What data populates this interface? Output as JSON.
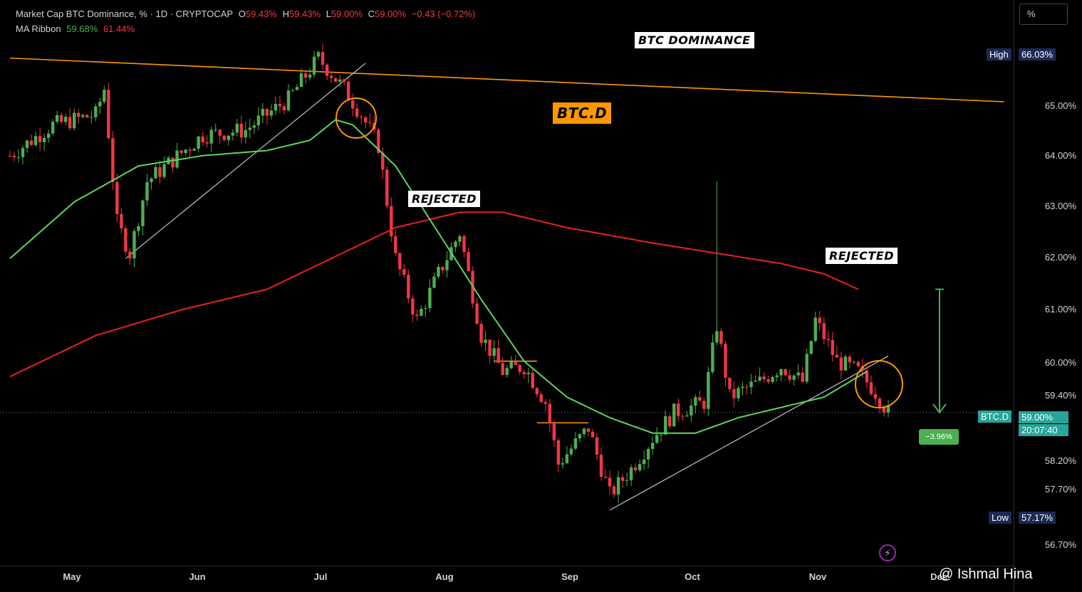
{
  "legend": {
    "title": "Market Cap BTC Dominance, % · 1D · CRYPTOCAP",
    "o_key": "O",
    "o_val": "59.43%",
    "h_key": "H",
    "h_val": "59.43%",
    "l_key": "L",
    "l_val": "59.00%",
    "c_key": "C",
    "c_val": "59.00%",
    "change": "−0.43 (−0.72%)",
    "ma_label": "MA Ribbon",
    "ma_fast": "59.68%",
    "ma_slow": "61.44%"
  },
  "annotations": {
    "btc_dominance": "BTC DOMINANCE",
    "btc_d": "BTC.D",
    "rejected_1": "REJECTED",
    "rejected_2": "REJECTED"
  },
  "axis": {
    "scale_button": "%",
    "high_label": "High",
    "high_value": "66.03%",
    "low_label": "Low",
    "low_value": "57.17%",
    "symbol_label": "BTC.D",
    "last_value": "59.00%",
    "countdown": "20:07:40",
    "change_badge": "−3.96%"
  },
  "watermark": "@ Ishmal Hina",
  "colors": {
    "up": "#4caf50",
    "down": "#f23645",
    "ma_fast": "#5bd65b",
    "ma_slow": "#e52222",
    "trendline": "#ff9800",
    "high_badge": "#1e2a55",
    "last_badge": "#26a69a"
  },
  "chart_data": {
    "type": "candlestick",
    "y_unit": "%",
    "ylim": [
      56.5,
      66.6
    ],
    "y_ticks": [
      "66.03%",
      "65.00%",
      "64.00%",
      "63.00%",
      "62.00%",
      "61.00%",
      "60.00%",
      "59.40%",
      "59.00%",
      "58.20%",
      "57.70%",
      "57.17%",
      "56.70%"
    ],
    "x_ticks": [
      "May",
      "Jun",
      "Jul",
      "Aug",
      "Sep",
      "Oct",
      "Nov",
      "Dec"
    ],
    "candle_count": 210,
    "price_path": [
      [
        0,
        64.0
      ],
      [
        10,
        64.6
      ],
      [
        20,
        64.8
      ],
      [
        22,
        65.3
      ],
      [
        25,
        62.7
      ],
      [
        28,
        62.1
      ],
      [
        32,
        63.5
      ],
      [
        45,
        64.4
      ],
      [
        55,
        64.5
      ],
      [
        65,
        65.1
      ],
      [
        72,
        65.9
      ],
      [
        78,
        65.3
      ],
      [
        82,
        64.8
      ],
      [
        86,
        64.2
      ],
      [
        90,
        62.0
      ],
      [
        95,
        60.8
      ],
      [
        100,
        61.7
      ],
      [
        105,
        62.5
      ],
      [
        110,
        60.5
      ],
      [
        115,
        59.8
      ],
      [
        120,
        59.9
      ],
      [
        125,
        59.2
      ],
      [
        128,
        58.0
      ],
      [
        135,
        58.7
      ],
      [
        140,
        57.4
      ],
      [
        145,
        57.9
      ],
      [
        150,
        58.5
      ],
      [
        155,
        59.0
      ],
      [
        162,
        59.2
      ],
      [
        165,
        60.7
      ],
      [
        168,
        59.3
      ],
      [
        175,
        59.6
      ],
      [
        180,
        59.9
      ],
      [
        185,
        59.6
      ],
      [
        188,
        60.8
      ],
      [
        193,
        60.0
      ],
      [
        198,
        59.8
      ],
      [
        202,
        59.4
      ],
      [
        205,
        59.0
      ]
    ],
    "ma_fast_path": [
      [
        0,
        62.0
      ],
      [
        15,
        63.1
      ],
      [
        30,
        63.8
      ],
      [
        45,
        64.0
      ],
      [
        60,
        64.1
      ],
      [
        70,
        64.3
      ],
      [
        76,
        64.7
      ],
      [
        80,
        64.6
      ],
      [
        90,
        63.8
      ],
      [
        100,
        62.5
      ],
      [
        110,
        61.2
      ],
      [
        120,
        60.0
      ],
      [
        130,
        59.3
      ],
      [
        140,
        58.9
      ],
      [
        150,
        58.6
      ],
      [
        160,
        58.6
      ],
      [
        170,
        58.9
      ],
      [
        180,
        59.1
      ],
      [
        190,
        59.3
      ],
      [
        200,
        59.8
      ]
    ],
    "ma_slow_path": [
      [
        0,
        59.7
      ],
      [
        20,
        60.5
      ],
      [
        40,
        61.0
      ],
      [
        60,
        61.4
      ],
      [
        75,
        62.0
      ],
      [
        90,
        62.6
      ],
      [
        105,
        62.9
      ],
      [
        115,
        62.9
      ],
      [
        130,
        62.6
      ],
      [
        150,
        62.3
      ],
      [
        165,
        62.1
      ],
      [
        180,
        61.9
      ],
      [
        190,
        61.7
      ],
      [
        198,
        61.4
      ]
    ],
    "trendlines": [
      {
        "from": [
          0,
          65.9
        ],
        "to": [
          232,
          65.05
        ],
        "color": "orange"
      },
      {
        "from": [
          27,
          62.0
        ],
        "to": [
          83,
          65.8
        ],
        "color": "gray"
      },
      {
        "from": [
          140,
          57.1
        ],
        "to": [
          205,
          60.1
        ],
        "color": "gray"
      },
      {
        "from": [
          113,
          60.0
        ],
        "to": [
          123,
          60.0
        ],
        "color": "orange"
      },
      {
        "from": [
          123,
          58.8
        ],
        "to": [
          135,
          58.8
        ],
        "color": "orange"
      }
    ],
    "target_arrow": {
      "from": [
        210,
        61.4
      ],
      "to": [
        210,
        59.0
      ],
      "change": "−3.96%"
    }
  }
}
